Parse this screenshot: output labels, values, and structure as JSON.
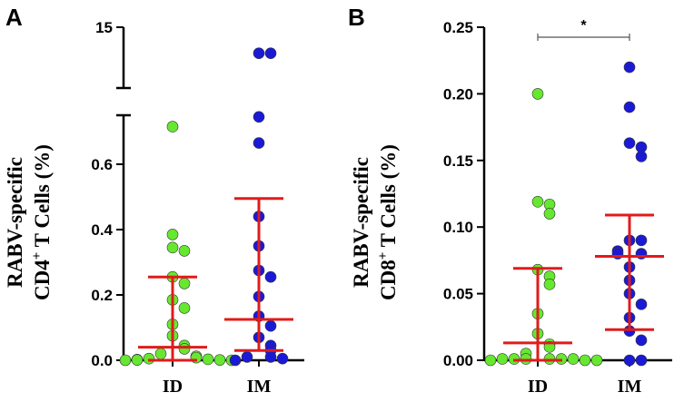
{
  "colors": {
    "ID": "#66e830",
    "IM": "#1a1ad6",
    "summary": "#e01b1b",
    "axis": "#000000"
  },
  "chart_data": [
    {
      "panel": "A",
      "type": "scatter",
      "ylabel": {
        "line1": "RABV-specific",
        "line2_pre": "CD4",
        "line2_sup": "+",
        "line2_post": " T Cells (%)"
      },
      "categories": [
        "ID",
        "IM"
      ],
      "axis": {
        "lower": {
          "range": [
            0,
            0.75
          ],
          "ticks": [
            0.0,
            0.2,
            0.4,
            0.6
          ],
          "tick_labels": [
            "0.0",
            "0.2",
            "0.4",
            "0.6"
          ]
        },
        "upper": {
          "range": [
            8,
            15
          ],
          "ticks": [
            15
          ],
          "tick_labels": [
            "15"
          ]
        }
      },
      "series": [
        {
          "name": "ID",
          "values": [
            0.715,
            0.385,
            0.345,
            0.335,
            0.255,
            0.235,
            0.185,
            0.16,
            0.11,
            0.075,
            0.045,
            0.035,
            0.02,
            0.012,
            0.008,
            0.005,
            0.003,
            0.002,
            0.001,
            0.001,
            0.0,
            0.0
          ]
        },
        {
          "name": "IM",
          "values": [
            12.0,
            12.0,
            0.745,
            0.665,
            0.44,
            0.35,
            0.275,
            0.255,
            0.195,
            0.135,
            0.105,
            0.07,
            0.045,
            0.03,
            0.01,
            0.01,
            0.005,
            0.0
          ]
        }
      ],
      "summary": [
        {
          "group": "ID",
          "median": 0.04,
          "q1": 0.0,
          "q3": 0.255
        },
        {
          "group": "IM",
          "median": 0.125,
          "q1": 0.03,
          "q3": 0.495
        }
      ]
    },
    {
      "panel": "B",
      "type": "scatter",
      "ylabel": {
        "line1": "RABV-specific",
        "line2_pre": "CD8",
        "line2_sup": "+",
        "line2_post": " T Cells (%)"
      },
      "categories": [
        "ID",
        "IM"
      ],
      "axis": {
        "range": [
          0,
          0.25
        ],
        "ticks": [
          0.0,
          0.05,
          0.1,
          0.15,
          0.2,
          0.25
        ],
        "tick_labels": [
          "0.00",
          "0.05",
          "0.10",
          "0.15",
          "0.20",
          "0.25"
        ]
      },
      "series": [
        {
          "name": "ID",
          "values": [
            0.2,
            0.119,
            0.117,
            0.11,
            0.068,
            0.063,
            0.057,
            0.035,
            0.02,
            0.012,
            0.01,
            0.005,
            0.001,
            0.001,
            0.001,
            0.001,
            0.001,
            0.001,
            0.0,
            0.0,
            0.0
          ]
        },
        {
          "name": "IM",
          "values": [
            0.22,
            0.19,
            0.163,
            0.16,
            0.153,
            0.09,
            0.09,
            0.082,
            0.08,
            0.08,
            0.07,
            0.06,
            0.05,
            0.042,
            0.032,
            0.022,
            0.015,
            0.0,
            0.0
          ]
        }
      ],
      "summary": [
        {
          "group": "ID",
          "median": 0.013,
          "q1": 0.0,
          "q3": 0.069
        },
        {
          "group": "IM",
          "median": 0.078,
          "q1": 0.023,
          "q3": 0.109
        }
      ],
      "significance": {
        "label": "*",
        "between": [
          "ID",
          "IM"
        ]
      }
    }
  ]
}
